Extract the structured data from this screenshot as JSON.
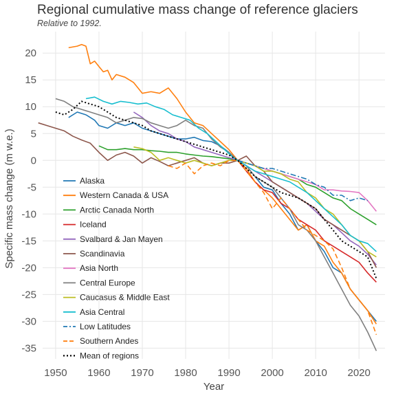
{
  "chart_data": {
    "type": "line",
    "title": "Regional cumulative mass change of reference glaciers",
    "subtitle": "Relative to 1992.",
    "xlabel": "Year",
    "ylabel": "Specific mass change (m w.e.)",
    "xlim": [
      1947,
      2026
    ],
    "ylim": [
      -37,
      24
    ],
    "xticks": [
      1950,
      1960,
      1970,
      1980,
      1990,
      2000,
      2010,
      2020
    ],
    "yticks": [
      20,
      15,
      10,
      5,
      0,
      -5,
      -10,
      -15,
      -20,
      -25,
      -30,
      -35
    ],
    "grid": true,
    "legend": "left-bottom-inside",
    "series": [
      {
        "name": "Alaska",
        "color": "#1f77b4",
        "dash": "solid",
        "x": [
          1953,
          1955,
          1957,
          1959,
          1960,
          1962,
          1964,
          1966,
          1968,
          1970,
          1972,
          1974,
          1976,
          1978,
          1980,
          1982,
          1984,
          1986,
          1988,
          1990,
          1992,
          1994,
          1996,
          1998,
          2000,
          2002,
          2004,
          2006,
          2008,
          2010,
          2012,
          2014,
          2016,
          2018,
          2020,
          2022,
          2024
        ],
        "y": [
          8,
          9,
          8.5,
          7.5,
          6.5,
          6,
          7,
          6.5,
          7,
          6,
          5.5,
          5,
          4.5,
          4,
          4,
          4.3,
          3.7,
          3.5,
          2.7,
          1.5,
          0,
          -1,
          -3,
          -5,
          -5.5,
          -8,
          -10,
          -13,
          -12,
          -15,
          -17,
          -20,
          -21,
          -24,
          -26,
          -28,
          -30
        ]
      },
      {
        "name": "Western Canada & USA",
        "color": "#ff7f0e",
        "dash": "solid",
        "x": [
          1953,
          1955,
          1956,
          1957,
          1958,
          1959,
          1960,
          1961,
          1962,
          1963,
          1964,
          1966,
          1968,
          1970,
          1972,
          1974,
          1976,
          1978,
          1980,
          1982,
          1984,
          1986,
          1988,
          1990,
          1992,
          1994,
          1996,
          1998,
          2000,
          2002,
          2004,
          2006,
          2008,
          2010,
          2012,
          2014,
          2016,
          2018,
          2020,
          2022,
          2024
        ],
        "y": [
          21,
          21.3,
          21.6,
          21.3,
          18,
          18.5,
          17.5,
          16.5,
          16.8,
          15,
          16,
          15.5,
          14.5,
          12.5,
          12.8,
          12.5,
          13.5,
          11.5,
          9,
          7,
          6.5,
          5,
          3.5,
          2,
          0,
          -1.5,
          -4,
          -5.5,
          -7,
          -9,
          -11,
          -13,
          -12,
          -15,
          -16,
          -19,
          -21,
          -24,
          -26,
          -28,
          -30.5
        ]
      },
      {
        "name": "Arctic Canada North",
        "color": "#2ca02c",
        "dash": "solid",
        "x": [
          1960,
          1962,
          1964,
          1966,
          1968,
          1970,
          1972,
          1974,
          1976,
          1978,
          1980,
          1982,
          1984,
          1986,
          1988,
          1990,
          1992,
          1994,
          1996,
          1998,
          2000,
          2002,
          2004,
          2006,
          2008,
          2010,
          2012,
          2014,
          2016,
          2018,
          2020,
          2022,
          2024
        ],
        "y": [
          2.7,
          2,
          2,
          2.2,
          2,
          2,
          1.8,
          1.7,
          1.5,
          1.5,
          1.2,
          1,
          0.8,
          0.7,
          0.5,
          0.3,
          0,
          -0.5,
          -1,
          -1.5,
          -2,
          -2.5,
          -3,
          -3.5,
          -4.5,
          -5,
          -6,
          -7,
          -7.5,
          -9,
          -10,
          -11,
          -12
        ]
      },
      {
        "name": "Iceland",
        "color": "#d62728",
        "dash": "solid",
        "x": [
          1992,
          1994,
          1996,
          1998,
          2000,
          2002,
          2004,
          2006,
          2008,
          2010,
          2012,
          2014,
          2016,
          2018,
          2020,
          2022,
          2024
        ],
        "y": [
          0,
          -2,
          -4,
          -5.5,
          -6,
          -8,
          -9,
          -11,
          -12,
          -13,
          -15,
          -16,
          -17,
          -18,
          -19,
          -21,
          -22.7
        ]
      },
      {
        "name": "Svalbard & Jan Mayen",
        "color": "#9467bd",
        "dash": "solid",
        "x": [
          1968,
          1970,
          1972,
          1974,
          1976,
          1978,
          1980,
          1982,
          1984,
          1986,
          1988,
          1990,
          1992,
          1994,
          1996,
          1998,
          2000,
          2002,
          2004,
          2006,
          2008,
          2010,
          2012,
          2014,
          2016,
          2018,
          2020,
          2022,
          2024
        ],
        "y": [
          9,
          8,
          6.5,
          5.5,
          5,
          4,
          3.5,
          2.5,
          2,
          1.5,
          1,
          0.5,
          0,
          -1,
          -2,
          -3,
          -4,
          -5,
          -6,
          -7,
          -8,
          -9.5,
          -11,
          -12,
          -13.5,
          -15,
          -16,
          -17.5,
          -19.5
        ]
      },
      {
        "name": "Scandinavia",
        "color": "#8c564b",
        "dash": "solid",
        "x": [
          1946,
          1948,
          1950,
          1952,
          1954,
          1956,
          1958,
          1960,
          1962,
          1964,
          1966,
          1968,
          1970,
          1972,
          1974,
          1976,
          1978,
          1980,
          1982,
          1984,
          1986,
          1988,
          1990,
          1992,
          1994,
          1996,
          1998,
          2000,
          2002,
          2004,
          2006,
          2008,
          2010,
          2012,
          2014,
          2016,
          2018,
          2020,
          2022,
          2024
        ],
        "y": [
          7,
          6.5,
          6,
          5.5,
          4.5,
          3.8,
          3.2,
          1.5,
          0,
          1,
          1.5,
          0.8,
          -0.5,
          0.5,
          -0.2,
          -1,
          -0.5,
          0,
          0.5,
          -0.5,
          -1,
          -0.5,
          -0.5,
          0,
          0.8,
          -1,
          -2,
          -4,
          -5,
          -6,
          -7,
          -8,
          -9,
          -11,
          -12,
          -13,
          -14,
          -15,
          -17,
          -20
        ]
      },
      {
        "name": "Asia North",
        "color": "#e377c2",
        "dash": "solid",
        "x": [
          1992,
          1994,
          1996,
          1998,
          2000,
          2002,
          2004,
          2006,
          2008,
          2010,
          2012,
          2014,
          2016,
          2018,
          2020,
          2022,
          2024
        ],
        "y": [
          0,
          -0.5,
          -1,
          -1.5,
          -2,
          -2.5,
          -3,
          -3.5,
          -4,
          -4.5,
          -5.5,
          -5.5,
          -5.7,
          -5.8,
          -6,
          -7.5,
          -9.5
        ]
      },
      {
        "name": "Central Europe",
        "color": "#7f7f7f",
        "dash": "solid",
        "x": [
          1950,
          1952,
          1954,
          1956,
          1958,
          1960,
          1962,
          1964,
          1966,
          1968,
          1970,
          1972,
          1974,
          1976,
          1978,
          1980,
          1982,
          1984,
          1986,
          1988,
          1990,
          1992,
          1994,
          1996,
          1998,
          2000,
          2002,
          2004,
          2006,
          2008,
          2010,
          2012,
          2014,
          2016,
          2018,
          2020,
          2022,
          2024
        ],
        "y": [
          11.5,
          11,
          10,
          9.5,
          9,
          8.5,
          8,
          7,
          7.5,
          8,
          7.8,
          7,
          6.5,
          6,
          6.5,
          7.5,
          6.5,
          6,
          4,
          2.5,
          1.5,
          0,
          -1,
          -3,
          -4,
          -5,
          -7,
          -9,
          -12,
          -13,
          -15,
          -18,
          -21,
          -24,
          -27,
          -29,
          -32,
          -35.5
        ]
      },
      {
        "name": "Caucasus & Middle East",
        "color": "#bcbd22",
        "dash": "solid",
        "x": [
          1968,
          1970,
          1972,
          1974,
          1976,
          1978,
          1980,
          1982,
          1984,
          1986,
          1988,
          1990,
          1992,
          1994,
          1996,
          1998,
          2000,
          2002,
          2004,
          2006,
          2008,
          2010,
          2012,
          2014,
          2016,
          2018,
          2020,
          2022,
          2024
        ],
        "y": [
          2.5,
          2.2,
          1.5,
          0,
          0.5,
          0,
          -0.5,
          0,
          -0.5,
          -1,
          -0.5,
          0,
          0,
          -0.5,
          -1,
          -2,
          -2,
          -2.5,
          -3.5,
          -4,
          -6,
          -7,
          -9,
          -10,
          -12,
          -14,
          -15,
          -17,
          -18
        ]
      },
      {
        "name": "Asia Central",
        "color": "#17becf",
        "dash": "solid",
        "x": [
          1957,
          1959,
          1961,
          1963,
          1965,
          1967,
          1969,
          1971,
          1973,
          1975,
          1977,
          1979,
          1981,
          1983,
          1985,
          1987,
          1989,
          1991,
          1992,
          1994,
          1996,
          1998,
          2000,
          2002,
          2004,
          2006,
          2008,
          2010,
          2012,
          2014,
          2016,
          2018,
          2020,
          2022,
          2024
        ],
        "y": [
          11.5,
          11.8,
          11,
          10.5,
          11,
          10.8,
          10.5,
          10.7,
          10,
          9.5,
          8.5,
          8,
          7.5,
          6,
          5,
          3.5,
          2,
          0.5,
          0,
          -1,
          -2,
          -2.5,
          -3,
          -3.5,
          -4,
          -5,
          -6,
          -7.5,
          -9,
          -10.5,
          -12,
          -14,
          -15,
          -15.5,
          -17
        ]
      },
      {
        "name": "Low Latitudes",
        "color": "#1f77b4",
        "dash": "dashdot",
        "x": [
          1992,
          1994,
          1996,
          1998,
          2000,
          2002,
          2004,
          2006,
          2008,
          2010,
          2012,
          2014,
          2016,
          2018,
          2020,
          2022
        ],
        "y": [
          0,
          -0.5,
          -1,
          -1.5,
          -1.5,
          -2,
          -2.5,
          -3,
          -3.5,
          -4.5,
          -5,
          -6.5,
          -6.5,
          -7.5,
          -7,
          -7.5
        ]
      },
      {
        "name": "Southern Andes",
        "color": "#ff7f0e",
        "dash": "dashed",
        "x": [
          1976,
          1978,
          1980,
          1982,
          1984,
          1986,
          1988,
          1990,
          1992,
          1994,
          1996,
          1998,
          2000,
          2002,
          2004,
          2006,
          2008,
          2010,
          2012,
          2014,
          2016,
          2018,
          2020,
          2022,
          2024
        ],
        "y": [
          -1,
          -1.5,
          -0.5,
          -2.5,
          -1,
          -0.5,
          -1,
          0,
          0,
          -2,
          -4,
          -6,
          -9,
          -7,
          -9,
          -11,
          -13,
          -14,
          -15,
          -16.5,
          -20,
          -24,
          -26,
          -28,
          -32.5
        ]
      },
      {
        "name": "Mean of regions",
        "color": "#000000",
        "dash": "dotted",
        "x": [
          1950,
          1952,
          1954,
          1956,
          1958,
          1960,
          1962,
          1964,
          1966,
          1968,
          1970,
          1972,
          1974,
          1976,
          1978,
          1980,
          1982,
          1984,
          1986,
          1988,
          1990,
          1992,
          1994,
          1996,
          1998,
          2000,
          2002,
          2004,
          2006,
          2008,
          2010,
          2012,
          2014,
          2016,
          2018,
          2020,
          2022,
          2024
        ],
        "y": [
          9,
          8.5,
          9.5,
          11,
          10.5,
          10,
          9,
          8,
          7.5,
          7,
          6.5,
          5.5,
          5,
          4.5,
          4,
          3.5,
          3,
          2.5,
          2,
          1.5,
          1,
          0,
          -1.5,
          -3,
          -4,
          -5,
          -6,
          -6.5,
          -7,
          -8,
          -9,
          -11,
          -13,
          -15,
          -16,
          -17,
          -18,
          -22
        ]
      }
    ]
  }
}
